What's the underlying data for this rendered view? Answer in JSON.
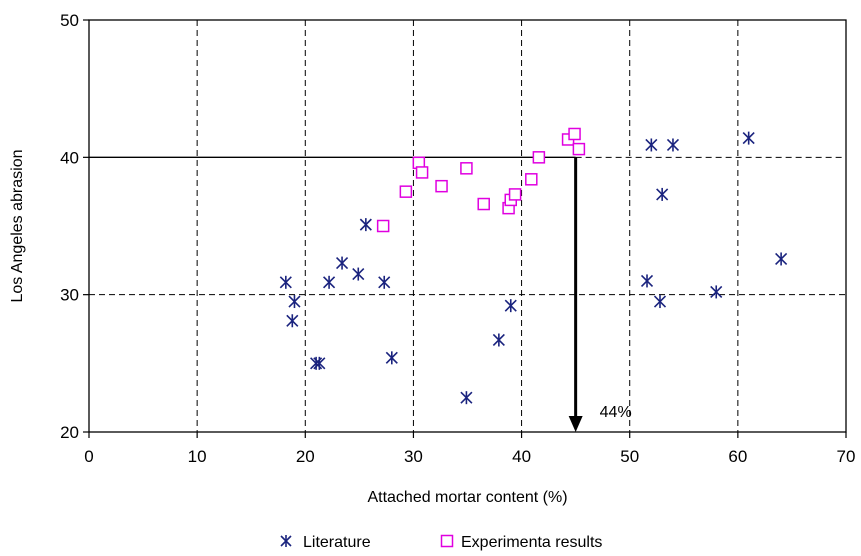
{
  "chart_data": {
    "type": "scatter",
    "xlabel": "Attached mortar content (%)",
    "ylabel": "Los Angeles abrasion",
    "xlim": [
      0,
      70
    ],
    "ylim": [
      20,
      50
    ],
    "xticks": [
      0,
      10,
      20,
      30,
      40,
      50,
      60,
      70
    ],
    "yticks": [
      20,
      30,
      40,
      50
    ],
    "x_tick_labels": [
      "0",
      "10",
      "20",
      "30",
      "40",
      "50",
      "60",
      "70"
    ],
    "y_tick_labels": [
      "20",
      "30",
      "40",
      "50"
    ],
    "grid": "dashed",
    "legend_position": "bottom",
    "series": [
      {
        "name": "Literature",
        "marker": "asterisk",
        "color": "#1a237e",
        "points": [
          [
            18.2,
            30.9
          ],
          [
            19.0,
            29.5
          ],
          [
            18.8,
            28.1
          ],
          [
            21.0,
            25.0
          ],
          [
            21.3,
            25.0
          ],
          [
            22.2,
            30.9
          ],
          [
            23.4,
            32.3
          ],
          [
            24.9,
            31.5
          ],
          [
            25.6,
            35.1
          ],
          [
            27.3,
            30.9
          ],
          [
            28.0,
            25.4
          ],
          [
            34.9,
            22.5
          ],
          [
            37.9,
            26.7
          ],
          [
            39.0,
            29.2
          ],
          [
            51.6,
            31.0
          ],
          [
            52.0,
            40.9
          ],
          [
            52.8,
            29.5
          ],
          [
            53.0,
            37.3
          ],
          [
            54.0,
            40.9
          ],
          [
            58.0,
            30.2
          ],
          [
            61.0,
            41.4
          ],
          [
            64.0,
            32.6
          ]
        ]
      },
      {
        "name": "Experimenta results",
        "marker": "square",
        "color": "#e000e0",
        "points": [
          [
            27.2,
            35.0
          ],
          [
            29.3,
            37.5
          ],
          [
            30.5,
            39.6
          ],
          [
            30.8,
            38.9
          ],
          [
            32.6,
            37.9
          ],
          [
            34.9,
            39.2
          ],
          [
            36.5,
            36.6
          ],
          [
            38.8,
            36.3
          ],
          [
            39.0,
            36.9
          ],
          [
            39.4,
            37.3
          ],
          [
            40.9,
            38.4
          ],
          [
            41.6,
            40.0
          ],
          [
            44.3,
            41.3
          ],
          [
            44.9,
            41.7
          ],
          [
            45.3,
            40.6
          ]
        ]
      }
    ],
    "reference_line": {
      "y": 40,
      "x_from": 0,
      "x_to": 45
    },
    "annotation": {
      "x": 45,
      "y_from": 40,
      "y_to": 20,
      "label": "44%"
    }
  }
}
